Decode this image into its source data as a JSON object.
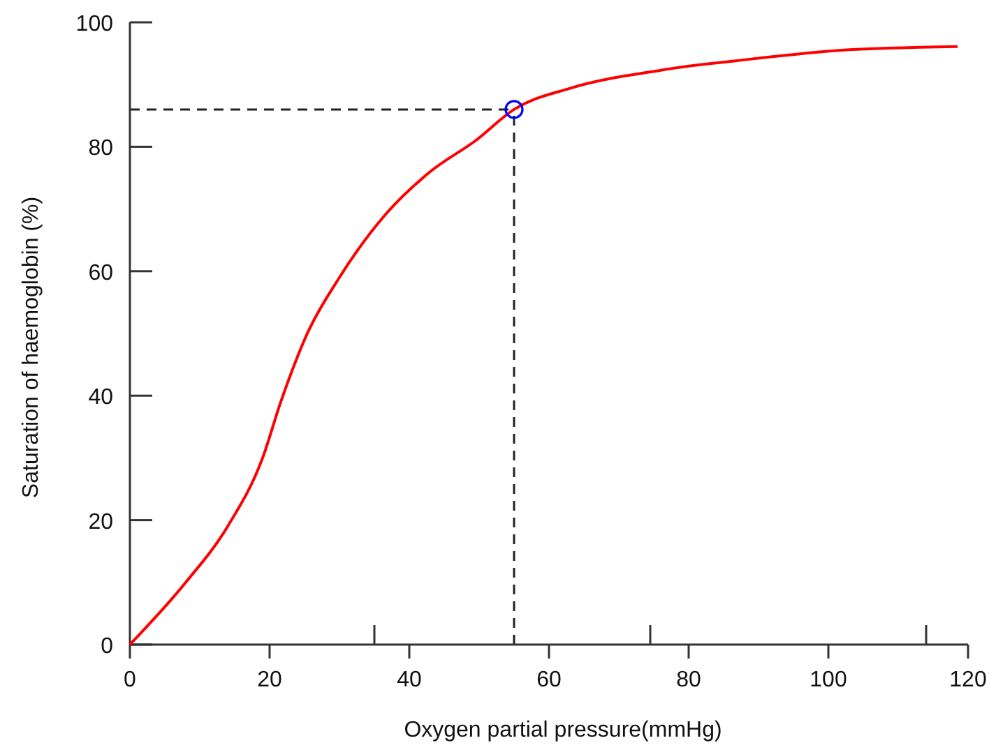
{
  "chart_data": {
    "type": "line",
    "xlabel": "Oxygen partial pressure(mmHg)",
    "ylabel": "Saturation of haemoglobin (%)",
    "xlim": [
      0,
      120
    ],
    "ylim": [
      0,
      100
    ],
    "xticks": [
      0,
      20,
      {
        "value": 35,
        "label": null
      },
      40,
      60,
      {
        "value": 74.5,
        "label": null
      },
      80,
      100,
      {
        "value": 114,
        "label": null
      },
      120
    ],
    "yticks": [
      0,
      20,
      40,
      60,
      80,
      100
    ],
    "grid": false,
    "series": [
      {
        "color": "#ff0000",
        "marker": "none",
        "x": [
          0,
          8,
          14,
          19,
          21.6,
          25.4,
          30,
          36.5,
          43,
          49.5,
          55,
          63,
          76,
          89,
          101.5,
          118.5
        ],
        "values": [
          0,
          10,
          19,
          30,
          39,
          50,
          59,
          69,
          76,
          81,
          86,
          89.4,
          92.3,
          94.1,
          95.5,
          96.1
        ]
      },
      {
        "type": "scatter",
        "color": "#0000ff",
        "marker": "circle",
        "x": [
          55
        ],
        "values": [
          86
        ]
      }
    ],
    "ref_lines": [
      {
        "axis": "x",
        "value": 55,
        "line_style": "dashed",
        "color": "#222222"
      },
      {
        "axis": "y",
        "value": 86,
        "line_style": "dashed",
        "color": "#222222"
      }
    ]
  }
}
